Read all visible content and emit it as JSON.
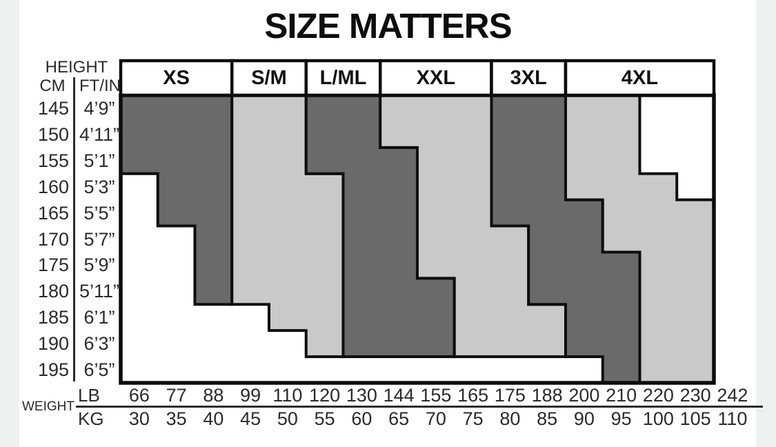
{
  "title": "SIZE MATTERS",
  "colors": {
    "dark_zone": "#6a6a6a",
    "light_zone": "#c9c9c9",
    "border": "#0d0d0d",
    "table_bg": "#ffffff",
    "edge_strip": "#eef1f2",
    "text": "#2b2b2b"
  },
  "height_axis": {
    "label": "HEIGHT",
    "unit_cm": "CM",
    "unit_ftin": "FT/IN",
    "rows": [
      {
        "cm": "145",
        "ftin": "4’9”"
      },
      {
        "cm": "150",
        "ftin": "4’11”"
      },
      {
        "cm": "155",
        "ftin": "5’1”"
      },
      {
        "cm": "160",
        "ftin": "5’3”"
      },
      {
        "cm": "165",
        "ftin": "5’5”"
      },
      {
        "cm": "170",
        "ftin": "5’7”"
      },
      {
        "cm": "175",
        "ftin": "5’9”"
      },
      {
        "cm": "180",
        "ftin": "5’11”"
      },
      {
        "cm": "185",
        "ftin": "6’1”"
      },
      {
        "cm": "190",
        "ftin": "6’3”"
      },
      {
        "cm": "195",
        "ftin": "6’5”"
      }
    ]
  },
  "weight_axis": {
    "label": "WEIGHT",
    "unit_lb": "LB",
    "unit_kg": "KG",
    "lb": [
      "66",
      "77",
      "88",
      "99",
      "110",
      "120",
      "130",
      "144",
      "155",
      "165",
      "175",
      "188",
      "200",
      "210",
      "220",
      "230",
      "242"
    ],
    "kg": [
      "30",
      "35",
      "40",
      "45",
      "50",
      "55",
      "60",
      "65",
      "70",
      "75",
      "80",
      "85",
      "90",
      "95",
      "100",
      "105",
      "110"
    ]
  },
  "chart_data": {
    "type": "stepped-region-size-chart",
    "title": "SIZE MATTERS",
    "x_axis": {
      "label": "WEIGHT",
      "boundaries_lb": [
        66,
        77,
        88,
        99,
        110,
        120,
        130,
        144,
        155,
        165,
        175,
        188,
        200,
        210,
        220,
        230,
        242
      ],
      "boundaries_kg": [
        30,
        35,
        40,
        45,
        50,
        55,
        60,
        65,
        70,
        75,
        80,
        85,
        90,
        95,
        100,
        105,
        110
      ]
    },
    "y_axis": {
      "label": "HEIGHT",
      "rows_cm": [
        145,
        150,
        155,
        160,
        165,
        170,
        175,
        180,
        185,
        190,
        195
      ]
    },
    "grid": {
      "columns": 16,
      "rows": 11
    },
    "zones": [
      {
        "label": "XS",
        "shade": "dark",
        "header_cols": [
          0,
          3
        ],
        "row_spans": [
          [
            0,
            3
          ],
          [
            0,
            3
          ],
          [
            0,
            3
          ],
          [
            1,
            3
          ],
          [
            1,
            3
          ],
          [
            2,
            3
          ],
          [
            2,
            3
          ],
          [
            2,
            3
          ],
          null,
          null,
          null
        ]
      },
      {
        "label": "S/M",
        "shade": "light",
        "header_cols": [
          3,
          5
        ],
        "row_spans": [
          [
            3,
            5
          ],
          [
            3,
            5
          ],
          [
            3,
            5
          ],
          [
            3,
            6
          ],
          [
            3,
            6
          ],
          [
            3,
            6
          ],
          [
            3,
            6
          ],
          [
            3,
            6
          ],
          [
            4,
            6
          ],
          [
            5,
            6
          ],
          null
        ]
      },
      {
        "label": "L/ML",
        "shade": "dark",
        "header_cols": [
          5,
          7
        ],
        "row_spans": [
          [
            5,
            7
          ],
          [
            5,
            7
          ],
          [
            5,
            8
          ],
          [
            6,
            8
          ],
          [
            6,
            8
          ],
          [
            6,
            8
          ],
          [
            6,
            8
          ],
          [
            6,
            9
          ],
          [
            6,
            9
          ],
          [
            6,
            9
          ],
          null
        ]
      },
      {
        "label": "XXL",
        "shade": "light",
        "header_cols": [
          7,
          10
        ],
        "row_spans": [
          [
            7,
            10
          ],
          [
            7,
            10
          ],
          [
            8,
            10
          ],
          [
            8,
            10
          ],
          [
            8,
            10
          ],
          [
            8,
            11
          ],
          [
            8,
            11
          ],
          [
            9,
            11
          ],
          [
            9,
            12
          ],
          [
            9,
            12
          ],
          null
        ]
      },
      {
        "label": "3XL",
        "shade": "dark",
        "header_cols": [
          10,
          12
        ],
        "row_spans": [
          [
            10,
            12
          ],
          [
            10,
            12
          ],
          [
            10,
            12
          ],
          [
            10,
            12
          ],
          [
            10,
            13
          ],
          [
            11,
            13
          ],
          [
            11,
            14
          ],
          [
            11,
            14
          ],
          [
            12,
            14
          ],
          [
            12,
            14
          ],
          [
            13,
            14
          ]
        ]
      },
      {
        "label": "4XL",
        "shade": "light",
        "header_cols": [
          12,
          16
        ],
        "row_spans": [
          [
            12,
            14
          ],
          [
            12,
            14
          ],
          [
            12,
            14
          ],
          [
            12,
            15
          ],
          [
            13,
            16
          ],
          [
            13,
            16
          ],
          [
            14,
            16
          ],
          [
            14,
            16
          ],
          [
            14,
            16
          ],
          [
            14,
            16
          ],
          [
            14,
            16
          ]
        ]
      }
    ]
  }
}
